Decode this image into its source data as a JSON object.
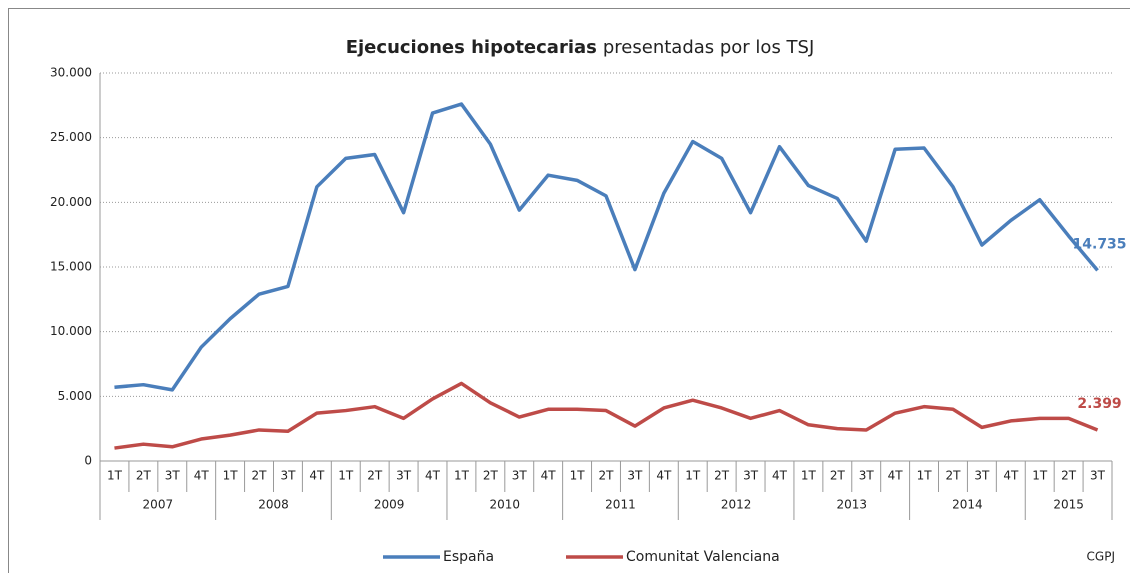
{
  "chart_data": {
    "type": "line",
    "title": {
      "bold": "Ejecuciones hipotecarias",
      "rest": "presentadas por los TSJ"
    },
    "categories": [
      "1T",
      "2T",
      "3T",
      "4T",
      "1T",
      "2T",
      "3T",
      "4T",
      "1T",
      "2T",
      "3T",
      "4T",
      "1T",
      "2T",
      "3T",
      "4T",
      "1T",
      "2T",
      "3T",
      "4T",
      "1T",
      "2T",
      "3T",
      "4T",
      "1T",
      "2T",
      "3T",
      "4T",
      "1T",
      "2T",
      "3T",
      "4T",
      "1T",
      "2T",
      "3T"
    ],
    "years": [
      "2007",
      "2008",
      "2009",
      "2010",
      "2011",
      "2012",
      "2013",
      "2014",
      "2015"
    ],
    "series": [
      {
        "name": "España",
        "color": "#4a7ebb",
        "values": [
          5700,
          5900,
          5500,
          8800,
          11000,
          12900,
          13500,
          21200,
          23400,
          23700,
          19200,
          26900,
          27600,
          24500,
          19400,
          22100,
          21700,
          20500,
          14800,
          20700,
          24700,
          23400,
          19200,
          24300,
          21300,
          20300,
          17000,
          24100,
          24200,
          21200,
          16700,
          18600,
          20200,
          17400,
          14735
        ],
        "value_labels": [
          null,
          null,
          null,
          null,
          null,
          null,
          null,
          null,
          null,
          null,
          null,
          null,
          null,
          null,
          null,
          null,
          null,
          null,
          null,
          null,
          null,
          null,
          null,
          null,
          null,
          null,
          null,
          null,
          null,
          null,
          null,
          null,
          null,
          null,
          "14.735"
        ]
      },
      {
        "name": "Comunitat Valenciana",
        "color": "#be4b48",
        "values": [
          1000,
          1300,
          1100,
          1700,
          2000,
          2400,
          2300,
          3700,
          3900,
          4200,
          3300,
          4800,
          6000,
          4500,
          3400,
          4000,
          4000,
          3900,
          2700,
          4100,
          4700,
          4100,
          3300,
          3900,
          2800,
          2500,
          2400,
          3700,
          4200,
          4000,
          2600,
          3100,
          3300,
          3300,
          2399
        ],
        "value_labels": [
          null,
          null,
          null,
          null,
          null,
          null,
          null,
          null,
          null,
          null,
          null,
          null,
          null,
          null,
          null,
          null,
          null,
          null,
          null,
          null,
          null,
          null,
          null,
          null,
          null,
          null,
          null,
          null,
          null,
          null,
          null,
          null,
          null,
          null,
          "2.399"
        ]
      }
    ],
    "ylim": [
      0,
      30000
    ],
    "yticks": [
      0,
      {
        "value": 5000,
        "label": "5.000"
      },
      {
        "value": 10000,
        "label": "10.000"
      },
      {
        "value": 15000,
        "label": "15.000"
      },
      {
        "value": 20000,
        "label": "20.000"
      },
      {
        "value": 25000,
        "label": "25.000"
      },
      {
        "value": 30000,
        "label": "30.000"
      }
    ],
    "grid": true,
    "legend": "bottom",
    "source": "CGPJ"
  }
}
